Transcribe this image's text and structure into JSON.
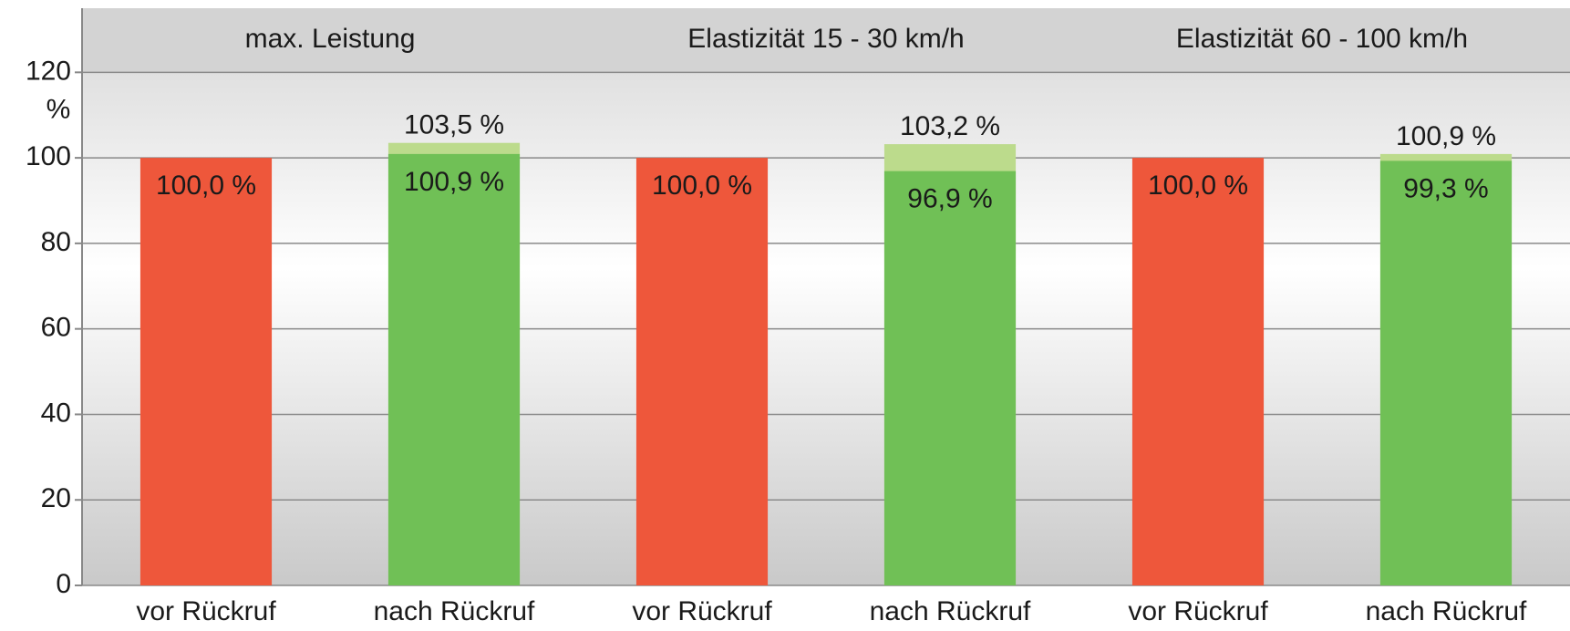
{
  "chart_data": {
    "type": "bar",
    "groups": [
      "max. Leistung",
      "Elastizität 15 - 30 km/h",
      "Elastizität 60 - 100 km/h"
    ],
    "categories": [
      "vor Rückruf",
      "nach Rückruf",
      "vor Rückruf",
      "nach Rückruf",
      "vor Rückruf",
      "nach Rückruf"
    ],
    "series": [
      {
        "color": "#ee573b",
        "values": [
          100.0,
          null,
          100.0,
          null,
          100.0,
          null
        ],
        "value_labels": [
          "100,0 %",
          null,
          "100,0 %",
          null,
          "100,0 %",
          null
        ]
      },
      {
        "color": "#bcdb8c",
        "values": [
          null,
          103.5,
          null,
          103.2,
          null,
          100.9
        ],
        "value_labels": [
          null,
          "103,5 %",
          null,
          "103,2 %",
          null,
          "100,9 %"
        ]
      },
      {
        "color": "#70c056",
        "values": [
          null,
          100.9,
          null,
          96.9,
          null,
          99.3
        ],
        "value_labels": [
          null,
          "100,9 %",
          null,
          "96,9 %",
          null,
          "99,3 %"
        ]
      }
    ],
    "y_unit": "%",
    "ylim": [
      0,
      135
    ],
    "yticks": [
      0,
      20,
      40,
      60,
      80,
      100,
      120
    ],
    "grid": true
  }
}
